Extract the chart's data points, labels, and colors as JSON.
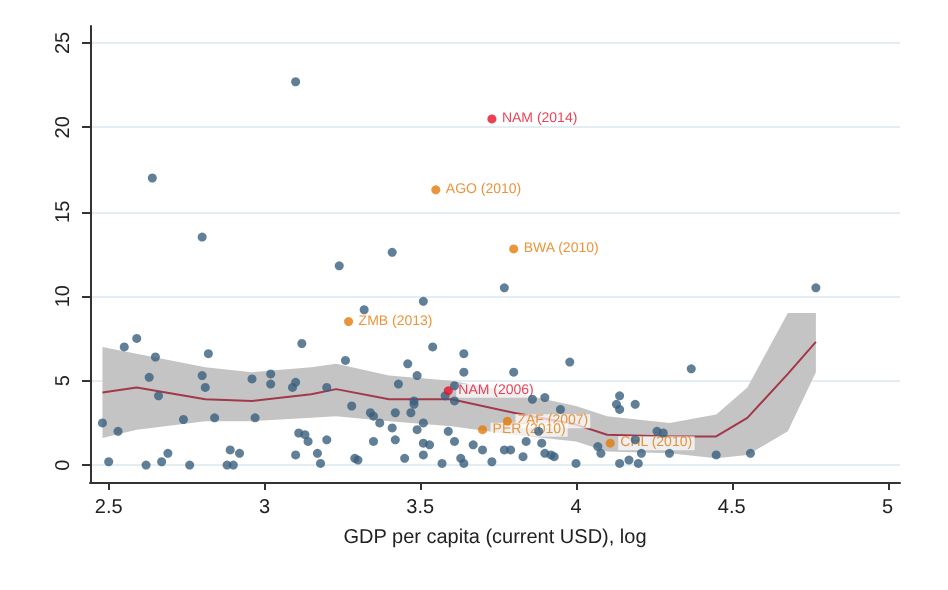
{
  "chart_data": {
    "type": "scatter",
    "xlabel": "GDP per capita (current USD), log",
    "xlim": [
      2.44,
      5.04
    ],
    "xticks": [
      2.5,
      3,
      3.5,
      4,
      4.5,
      5
    ],
    "ylim": [
      -1,
      26
    ],
    "yticks": [
      0,
      5,
      10,
      15,
      20,
      25
    ],
    "grid": "y",
    "marker": "circle",
    "series": [
      {
        "color": "#3a5f7d",
        "x": [
          3.1,
          2.64,
          2.8,
          3.41,
          3.24,
          3.32,
          3.51,
          3.77,
          4.77,
          3.54,
          3.12,
          2.55,
          2.59,
          2.65,
          2.82,
          2.63,
          2.66,
          2.8,
          2.81,
          2.84,
          2.74,
          2.48,
          2.53,
          2.5,
          2.62,
          2.67,
          2.69,
          2.76,
          2.88,
          2.9,
          2.89,
          2.92,
          2.96,
          3.02,
          3.02,
          2.97,
          3.09,
          3.1,
          3.11,
          3.13,
          3.14,
          3.1,
          3.17,
          3.18,
          3.2,
          3.2,
          3.26,
          3.28,
          3.29,
          3.3,
          3.34,
          3.35,
          3.37,
          3.35,
          3.41,
          3.42,
          3.43,
          3.42,
          3.45,
          3.46,
          3.49,
          3.48,
          3.48,
          3.47,
          3.49,
          3.51,
          3.51,
          3.51,
          3.53,
          3.57,
          3.59,
          3.58,
          3.61,
          3.61,
          3.64,
          3.64,
          3.61,
          3.64,
          3.63,
          3.67,
          3.7,
          3.73,
          3.77,
          3.79,
          3.8,
          3.83,
          3.84,
          3.86,
          3.89,
          3.9,
          3.9,
          3.88,
          3.92,
          3.93,
          3.95,
          3.98,
          4.0,
          4.07,
          4.08,
          4.13,
          4.14,
          4.14,
          4.14,
          4.19,
          4.17,
          4.2,
          4.19,
          4.21,
          4.26,
          4.28,
          4.3,
          4.37,
          4.45,
          4.56
        ],
        "values": [
          22.7,
          17.0,
          13.5,
          12.6,
          11.8,
          9.2,
          9.7,
          10.5,
          10.5,
          7.0,
          7.2,
          7.0,
          7.5,
          6.4,
          6.6,
          5.2,
          4.1,
          5.3,
          4.6,
          2.8,
          2.7,
          2.5,
          2.0,
          0.2,
          0,
          0.2,
          0.7,
          0,
          0,
          0,
          0.9,
          0.7,
          5.1,
          5.4,
          4.8,
          2.8,
          4.6,
          4.9,
          1.9,
          1.8,
          1.4,
          0.6,
          0.7,
          0.1,
          1.5,
          4.6,
          6.2,
          3.5,
          0.4,
          0.3,
          3.1,
          2.9,
          2.5,
          1.4,
          2.2,
          3.1,
          4.8,
          1.5,
          0.4,
          6.0,
          5.3,
          3.8,
          3.6,
          3.1,
          2.1,
          2.5,
          0.6,
          1.3,
          1.2,
          0.1,
          2.0,
          4.1,
          3.8,
          4.7,
          5.5,
          6.6,
          1.4,
          0.1,
          0.4,
          1.2,
          0.9,
          0.2,
          0.9,
          0.9,
          5.5,
          0.5,
          1.4,
          3.9,
          1.3,
          4.0,
          0.7,
          2.0,
          0.6,
          0.5,
          3.3,
          6.1,
          0.1,
          1.1,
          0.7,
          3.6,
          3.3,
          4.1,
          0.1,
          3.6,
          0.3,
          0.1,
          1.5,
          0.7,
          2.0,
          1.9,
          0.7,
          5.7,
          0.6,
          0.7
        ]
      },
      {
        "color": "#e67a0a",
        "x": [
          3.55,
          3.8,
          3.27,
          3.78,
          3.7,
          4.11
        ],
        "values": [
          16.3,
          12.8,
          8.5,
          2.6,
          2.1,
          1.3
        ]
      },
      {
        "color": "#e8102a",
        "x": [
          3.73,
          3.59
        ],
        "values": [
          20.5,
          4.4
        ]
      },
      {
        "type": "line",
        "color": "#a3384a",
        "marker": "none",
        "x": [
          2.48,
          2.59,
          2.81,
          2.96,
          3.15,
          3.23,
          3.4,
          3.6,
          3.8,
          4.0,
          4.1,
          4.3,
          4.45,
          4.55,
          4.68,
          4.77
        ],
        "values": [
          4.3,
          4.6,
          3.9,
          3.8,
          4.2,
          4.5,
          3.9,
          3.9,
          3.1,
          2.4,
          1.8,
          1.7,
          1.7,
          2.8,
          5.4,
          7.3
        ],
        "upper": [
          7.0,
          6.6,
          5.8,
          5.5,
          5.8,
          6.0,
          5.3,
          5.0,
          4.3,
          3.5,
          2.9,
          2.5,
          3.0,
          4.6,
          9.0,
          9.0
        ],
        "lower": [
          1.6,
          2.1,
          2.6,
          2.6,
          2.8,
          2.9,
          2.6,
          2.3,
          1.8,
          1.4,
          0.8,
          0.7,
          0.4,
          0.6,
          2.0,
          5.5
        ]
      }
    ],
    "annotations": [
      {
        "text": "NAM (2014)",
        "x": 3.73,
        "y": 20.5
      },
      {
        "text": "AGO (2010)",
        "x": 3.55,
        "y": 16.3
      },
      {
        "text": "BWA (2010)",
        "x": 3.8,
        "y": 12.8
      },
      {
        "text": "ZMB (2013)",
        "x": 3.27,
        "y": 8.5
      },
      {
        "text": "NAM (2006)",
        "x": 3.59,
        "y": 4.4
      },
      {
        "text": "ZAF (2007)",
        "x": 3.78,
        "y": 2.6
      },
      {
        "text": "PER (2010)",
        "x": 3.7,
        "y": 2.1
      },
      {
        "text": "CHL (2010)",
        "x": 4.11,
        "y": 1.3
      }
    ]
  }
}
